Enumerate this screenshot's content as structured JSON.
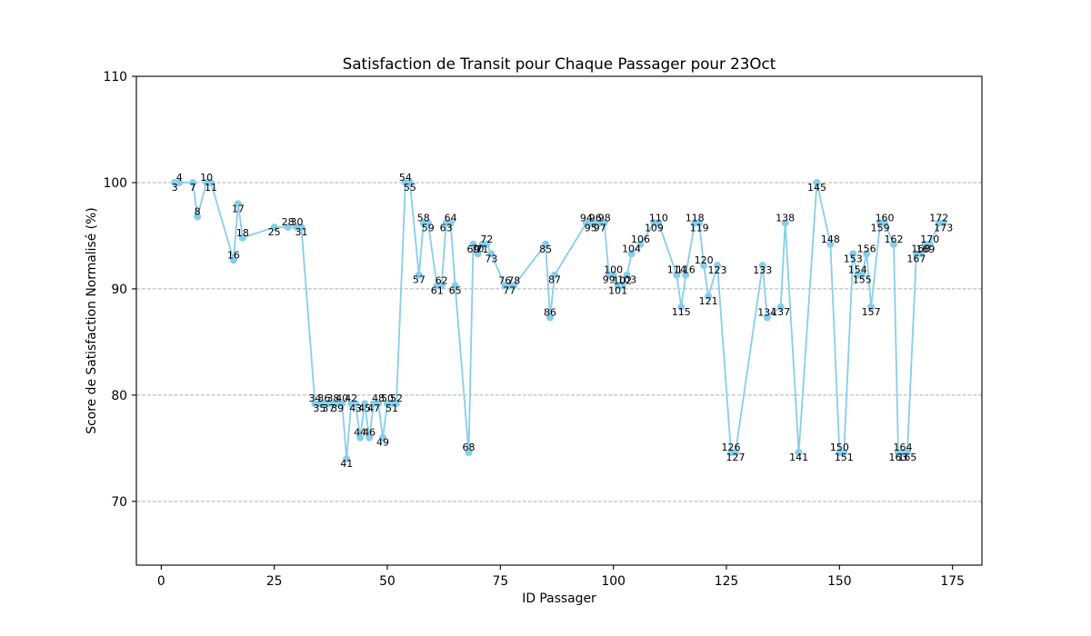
{
  "chart_data": {
    "type": "line",
    "title": "Satisfaction de Transit pour Chaque Passager pour 23Oct",
    "xlabel": "ID Passager",
    "ylabel": "Score de Satisfaction Normalisé (%)",
    "marker": "circle",
    "grid": "y",
    "colors": {
      "line": "#87ceeb",
      "grid": "#b0b0b0"
    },
    "xlim": [
      -5.5,
      181.5
    ],
    "ylim": [
      64,
      110
    ],
    "xticks": [
      0,
      25,
      50,
      75,
      100,
      125,
      150,
      175
    ],
    "yticks": [
      70,
      80,
      90,
      100,
      110
    ],
    "x": [
      3,
      4,
      7,
      8,
      10,
      11,
      16,
      17,
      18,
      25,
      28,
      30,
      31,
      34,
      35,
      36,
      37,
      38,
      39,
      40,
      41,
      42,
      43,
      44,
      45,
      46,
      47,
      48,
      49,
      50,
      51,
      52,
      54,
      55,
      57,
      58,
      59,
      61,
      62,
      63,
      64,
      65,
      68,
      69,
      70,
      71,
      72,
      73,
      76,
      77,
      78,
      85,
      86,
      87,
      94,
      95,
      96,
      97,
      98,
      99,
      100,
      101,
      102,
      103,
      104,
      106,
      109,
      110,
      114,
      115,
      116,
      118,
      119,
      120,
      121,
      123,
      126,
      127,
      133,
      134,
      137,
      138,
      141,
      145,
      148,
      150,
      151,
      153,
      154,
      155,
      156,
      157,
      159,
      160,
      162,
      163,
      164,
      165,
      167,
      168,
      169,
      170,
      172,
      173
    ],
    "y": [
      100,
      100,
      100,
      96.8,
      100,
      100,
      92.7,
      98.0,
      94.8,
      95.8,
      95.8,
      95.8,
      95.8,
      79.2,
      79.2,
      79.2,
      79.2,
      79.2,
      79.2,
      79.2,
      74.0,
      79.2,
      79.2,
      76.0,
      79.2,
      76.0,
      79.2,
      79.2,
      76.0,
      79.2,
      79.2,
      79.2,
      100,
      100,
      91.3,
      96.2,
      96.2,
      90.3,
      90.3,
      96.2,
      96.2,
      90.3,
      74.6,
      94.2,
      93.3,
      94.2,
      94.2,
      93.3,
      90.3,
      90.3,
      90.3,
      94.2,
      87.3,
      91.3,
      96.2,
      96.2,
      96.2,
      96.2,
      96.2,
      91.3,
      91.3,
      90.3,
      90.3,
      91.3,
      93.3,
      94.2,
      96.2,
      96.2,
      91.3,
      88.3,
      91.3,
      96.2,
      96.2,
      92.2,
      89.3,
      92.2,
      74.6,
      74.6,
      92.2,
      87.3,
      88.3,
      96.2,
      74.6,
      100,
      94.2,
      74.6,
      74.6,
      93.3,
      91.3,
      91.3,
      93.3,
      88.3,
      96.2,
      96.2,
      94.2,
      74.6,
      74.6,
      74.6,
      93.3,
      93.3,
      94.2,
      94.2,
      96.2,
      96.2
    ]
  }
}
